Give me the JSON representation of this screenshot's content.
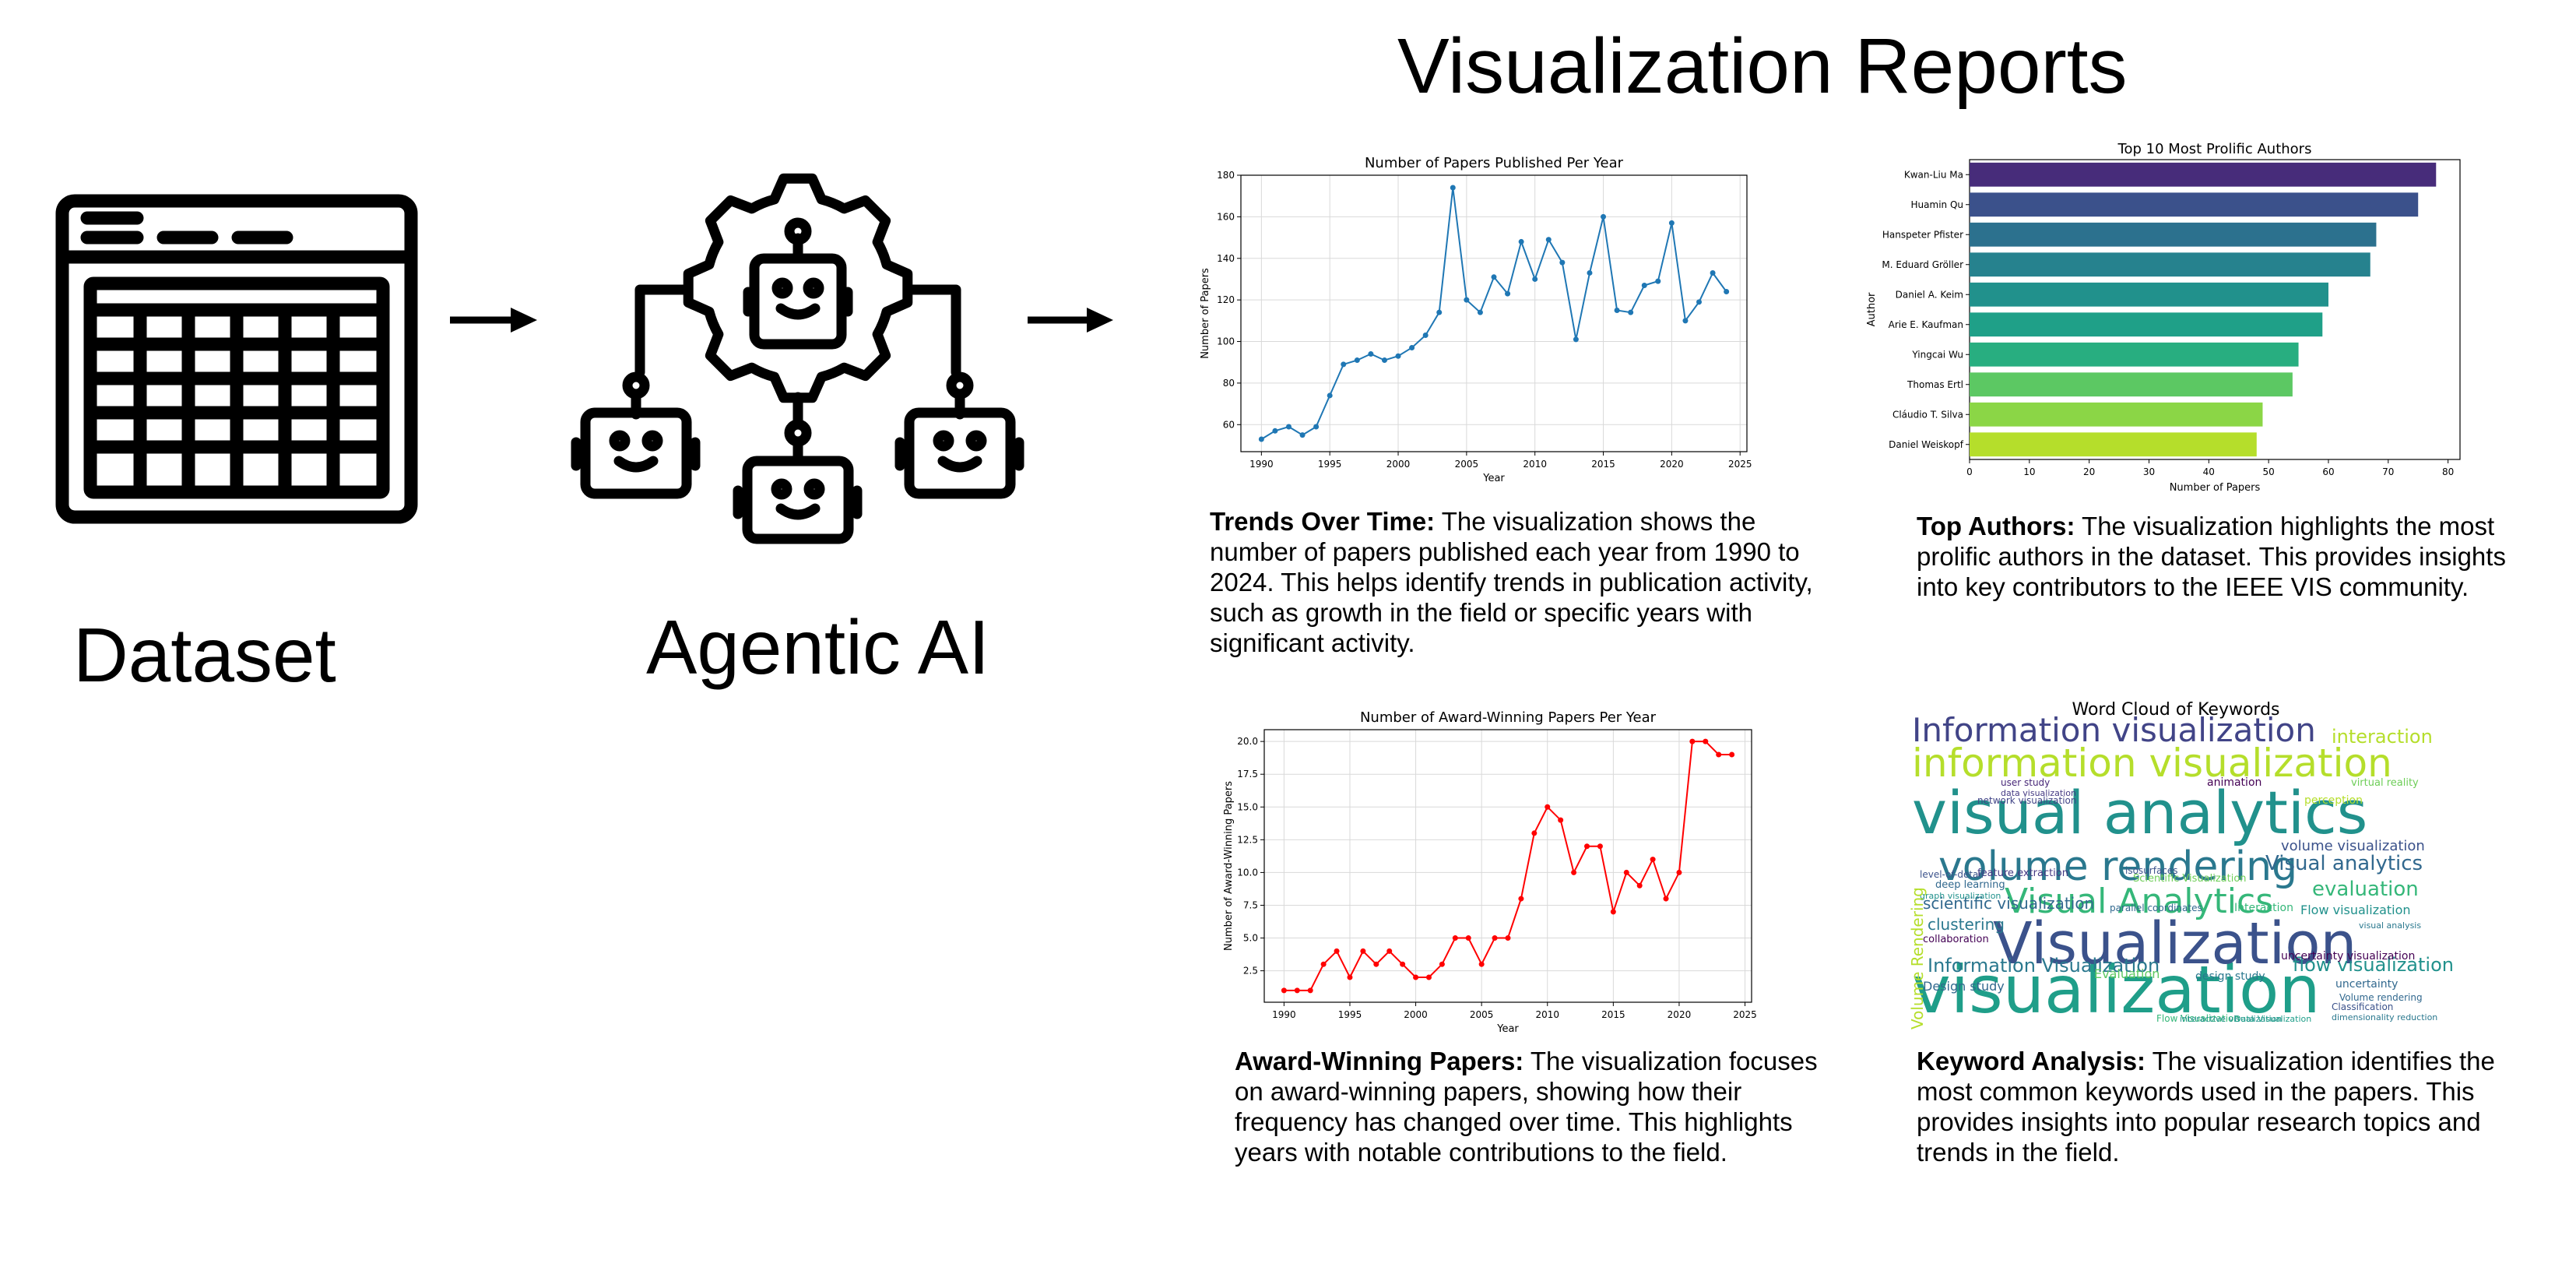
{
  "header": {
    "title": "Visualization Reports"
  },
  "pipeline": {
    "dataset_label": "Dataset",
    "agent_label": "Agentic AI",
    "icons": [
      "table-icon",
      "arrow-right-icon",
      "gear-robots-icon",
      "arrow-right-icon"
    ]
  },
  "reports": [
    {
      "heading": "Trends Over Time:",
      "text": "The visualization shows the number of papers published each year from 1990 to 2024. This helps identify trends in publication activity, such as growth in the field or specific years with significant activity."
    },
    {
      "heading": "Top Authors:",
      "text": "The visualization highlights the most prolific authors in the dataset. This provides insights into key contributors to the IEEE VIS community."
    },
    {
      "heading": "Award-Winning Papers:",
      "text": "The visualization focuses on award-winning papers, showing how their frequency has changed over time. This highlights years with notable contributions to the field."
    },
    {
      "heading": "Keyword Analysis:",
      "text": "The visualization identifies the most common keywords used in the papers. This provides insights into popular research topics and trends in the field."
    }
  ],
  "chart_data": [
    {
      "type": "line",
      "title": "Number of Papers Published Per Year",
      "xlabel": "Year",
      "ylabel": "Number of Papers",
      "color": "#1f77b4",
      "xlim": [
        1988.5,
        2025.5
      ],
      "ylim": [
        47,
        180
      ],
      "xticks": [
        1990,
        1995,
        2000,
        2005,
        2010,
        2015,
        2020,
        2025
      ],
      "yticks": [
        60,
        80,
        100,
        120,
        140,
        160,
        180
      ],
      "x": [
        1990,
        1991,
        1992,
        1993,
        1994,
        1995,
        1996,
        1997,
        1998,
        1999,
        2000,
        2001,
        2002,
        2003,
        2004,
        2005,
        2006,
        2007,
        2008,
        2009,
        2010,
        2011,
        2012,
        2013,
        2014,
        2015,
        2016,
        2017,
        2018,
        2019,
        2020,
        2021,
        2022,
        2023,
        2024
      ],
      "y": [
        53,
        57,
        59,
        55,
        59,
        74,
        89,
        91,
        94,
        91,
        93,
        97,
        103,
        114,
        174,
        120,
        114,
        131,
        123,
        148,
        130,
        149,
        138,
        101,
        133,
        160,
        115,
        114,
        127,
        129,
        157,
        110,
        119,
        133,
        124
      ]
    },
    {
      "type": "bar",
      "orientation": "horizontal",
      "title": "Top 10 Most Prolific Authors",
      "xlabel": "Number of Papers",
      "ylabel": "Author",
      "xlim": [
        0,
        82
      ],
      "xticks": [
        0,
        10,
        20,
        30,
        40,
        50,
        60,
        70,
        80
      ],
      "categories": [
        "Kwan-Liu Ma",
        "Huamin Qu",
        "Hanspeter Pfister",
        "M. Eduard Gröller",
        "Daniel A. Keim",
        "Arie E. Kaufman",
        "Yingcai Wu",
        "Thomas Ertl",
        "Cláudio T. Silva",
        "Daniel Weiskopf"
      ],
      "values": [
        78,
        75,
        68,
        67,
        60,
        59,
        55,
        54,
        49,
        48
      ],
      "colors": [
        "#472c7a",
        "#3b518b",
        "#2c718e",
        "#26828e",
        "#21918c",
        "#1fa088",
        "#28ae80",
        "#5cc863",
        "#8bd646",
        "#b5de2b"
      ]
    },
    {
      "type": "line",
      "title": "Number of Award-Winning Papers Per Year",
      "xlabel": "Year",
      "ylabel": "Number of Award-Winning Papers",
      "color": "#ff0000",
      "xlim": [
        1988.5,
        2025.5
      ],
      "ylim": [
        0.1,
        20.9
      ],
      "xticks": [
        1990,
        1995,
        2000,
        2005,
        2010,
        2015,
        2020,
        2025
      ],
      "yticks": [
        "2.5",
        "5.0",
        "7.5",
        "10.0",
        "12.5",
        "15.0",
        "17.5",
        "20.0"
      ],
      "x": [
        1990,
        1991,
        1992,
        1993,
        1994,
        1995,
        1996,
        1997,
        1998,
        1999,
        2000,
        2001,
        2002,
        2003,
        2004,
        2005,
        2006,
        2007,
        2008,
        2009,
        2010,
        2011,
        2012,
        2013,
        2014,
        2015,
        2016,
        2017,
        2018,
        2019,
        2020,
        2021,
        2022,
        2023,
        2024
      ],
      "y": [
        1,
        1,
        1,
        3,
        4,
        2,
        4,
        3,
        4,
        3,
        2,
        2,
        3,
        5,
        5,
        3,
        5,
        5,
        8,
        13,
        15,
        14,
        10,
        12,
        12,
        7,
        10,
        9,
        11,
        8,
        10,
        20,
        20,
        19,
        19
      ]
    },
    {
      "type": "wordcloud",
      "title": "Word Cloud of Keywords",
      "words": [
        {
          "text": "visualization",
          "color": "#1f9e89"
        },
        {
          "text": "Visualization",
          "color": "#3b528b"
        },
        {
          "text": "visual analytics",
          "color": "#21918c"
        },
        {
          "text": "volume rendering",
          "color": "#2a788e"
        },
        {
          "text": "information visualization",
          "color": "#b5de2b"
        },
        {
          "text": "Information visualization",
          "color": "#414487"
        },
        {
          "text": "Visual Analytics",
          "color": "#35b779"
        },
        {
          "text": "Information Visualization",
          "color": "#2a788e"
        },
        {
          "text": "flow visualization",
          "color": "#21918c"
        },
        {
          "text": "Visual analytics",
          "color": "#31688e"
        },
        {
          "text": "evaluation",
          "color": "#35b779"
        },
        {
          "text": "interaction",
          "color": "#b5de2b"
        },
        {
          "text": "volume visualization",
          "color": "#3b528b"
        },
        {
          "text": "Flow visualization",
          "color": "#21918c"
        },
        {
          "text": "uncertainty visualization",
          "color": "#440154"
        },
        {
          "text": "Scientific Visualization",
          "color": "#6ece58"
        },
        {
          "text": "scientific visualization",
          "color": "#31688e"
        },
        {
          "text": "clustering",
          "color": "#2a788e"
        },
        {
          "text": "feature extraction",
          "color": "#443983"
        },
        {
          "text": "parallel coordinates",
          "color": "#31688e"
        },
        {
          "text": "Interaction",
          "color": "#35b779"
        },
        {
          "text": "Design study",
          "color": "#31688e"
        },
        {
          "text": "design study",
          "color": "#2a788e"
        },
        {
          "text": "Evaluation",
          "color": "#5ec962"
        },
        {
          "text": "collaboration",
          "color": "#440154"
        },
        {
          "text": "deep learning",
          "color": "#31688e"
        },
        {
          "text": "level-of-detail",
          "color": "#3b528b"
        },
        {
          "text": "graph visualization",
          "color": "#21918c"
        },
        {
          "text": "user study",
          "color": "#482878"
        },
        {
          "text": "Volume Rendering",
          "color": "#b5de2b"
        },
        {
          "text": "uncertainty",
          "color": "#31688e"
        },
        {
          "text": "Classification",
          "color": "#3b528b"
        },
        {
          "text": "animation",
          "color": "#440154"
        },
        {
          "text": "virtual reality",
          "color": "#6ece58"
        },
        {
          "text": "isosurfaces",
          "color": "#3b528b"
        },
        {
          "text": "dimensionality reduction",
          "color": "#2a788e"
        },
        {
          "text": "perception",
          "color": "#b5de2b"
        },
        {
          "text": "data visualization",
          "color": "#443983"
        },
        {
          "text": "Volume rendering",
          "color": "#31688e"
        },
        {
          "text": "network visualization",
          "color": "#414487"
        },
        {
          "text": "visual analysis",
          "color": "#2a788e"
        },
        {
          "text": "Flow Visualization",
          "color": "#35b779"
        },
        {
          "text": "interactive visualization",
          "color": "#21918c"
        },
        {
          "text": "Data Visualization",
          "color": "#1f9e89"
        }
      ]
    }
  ]
}
